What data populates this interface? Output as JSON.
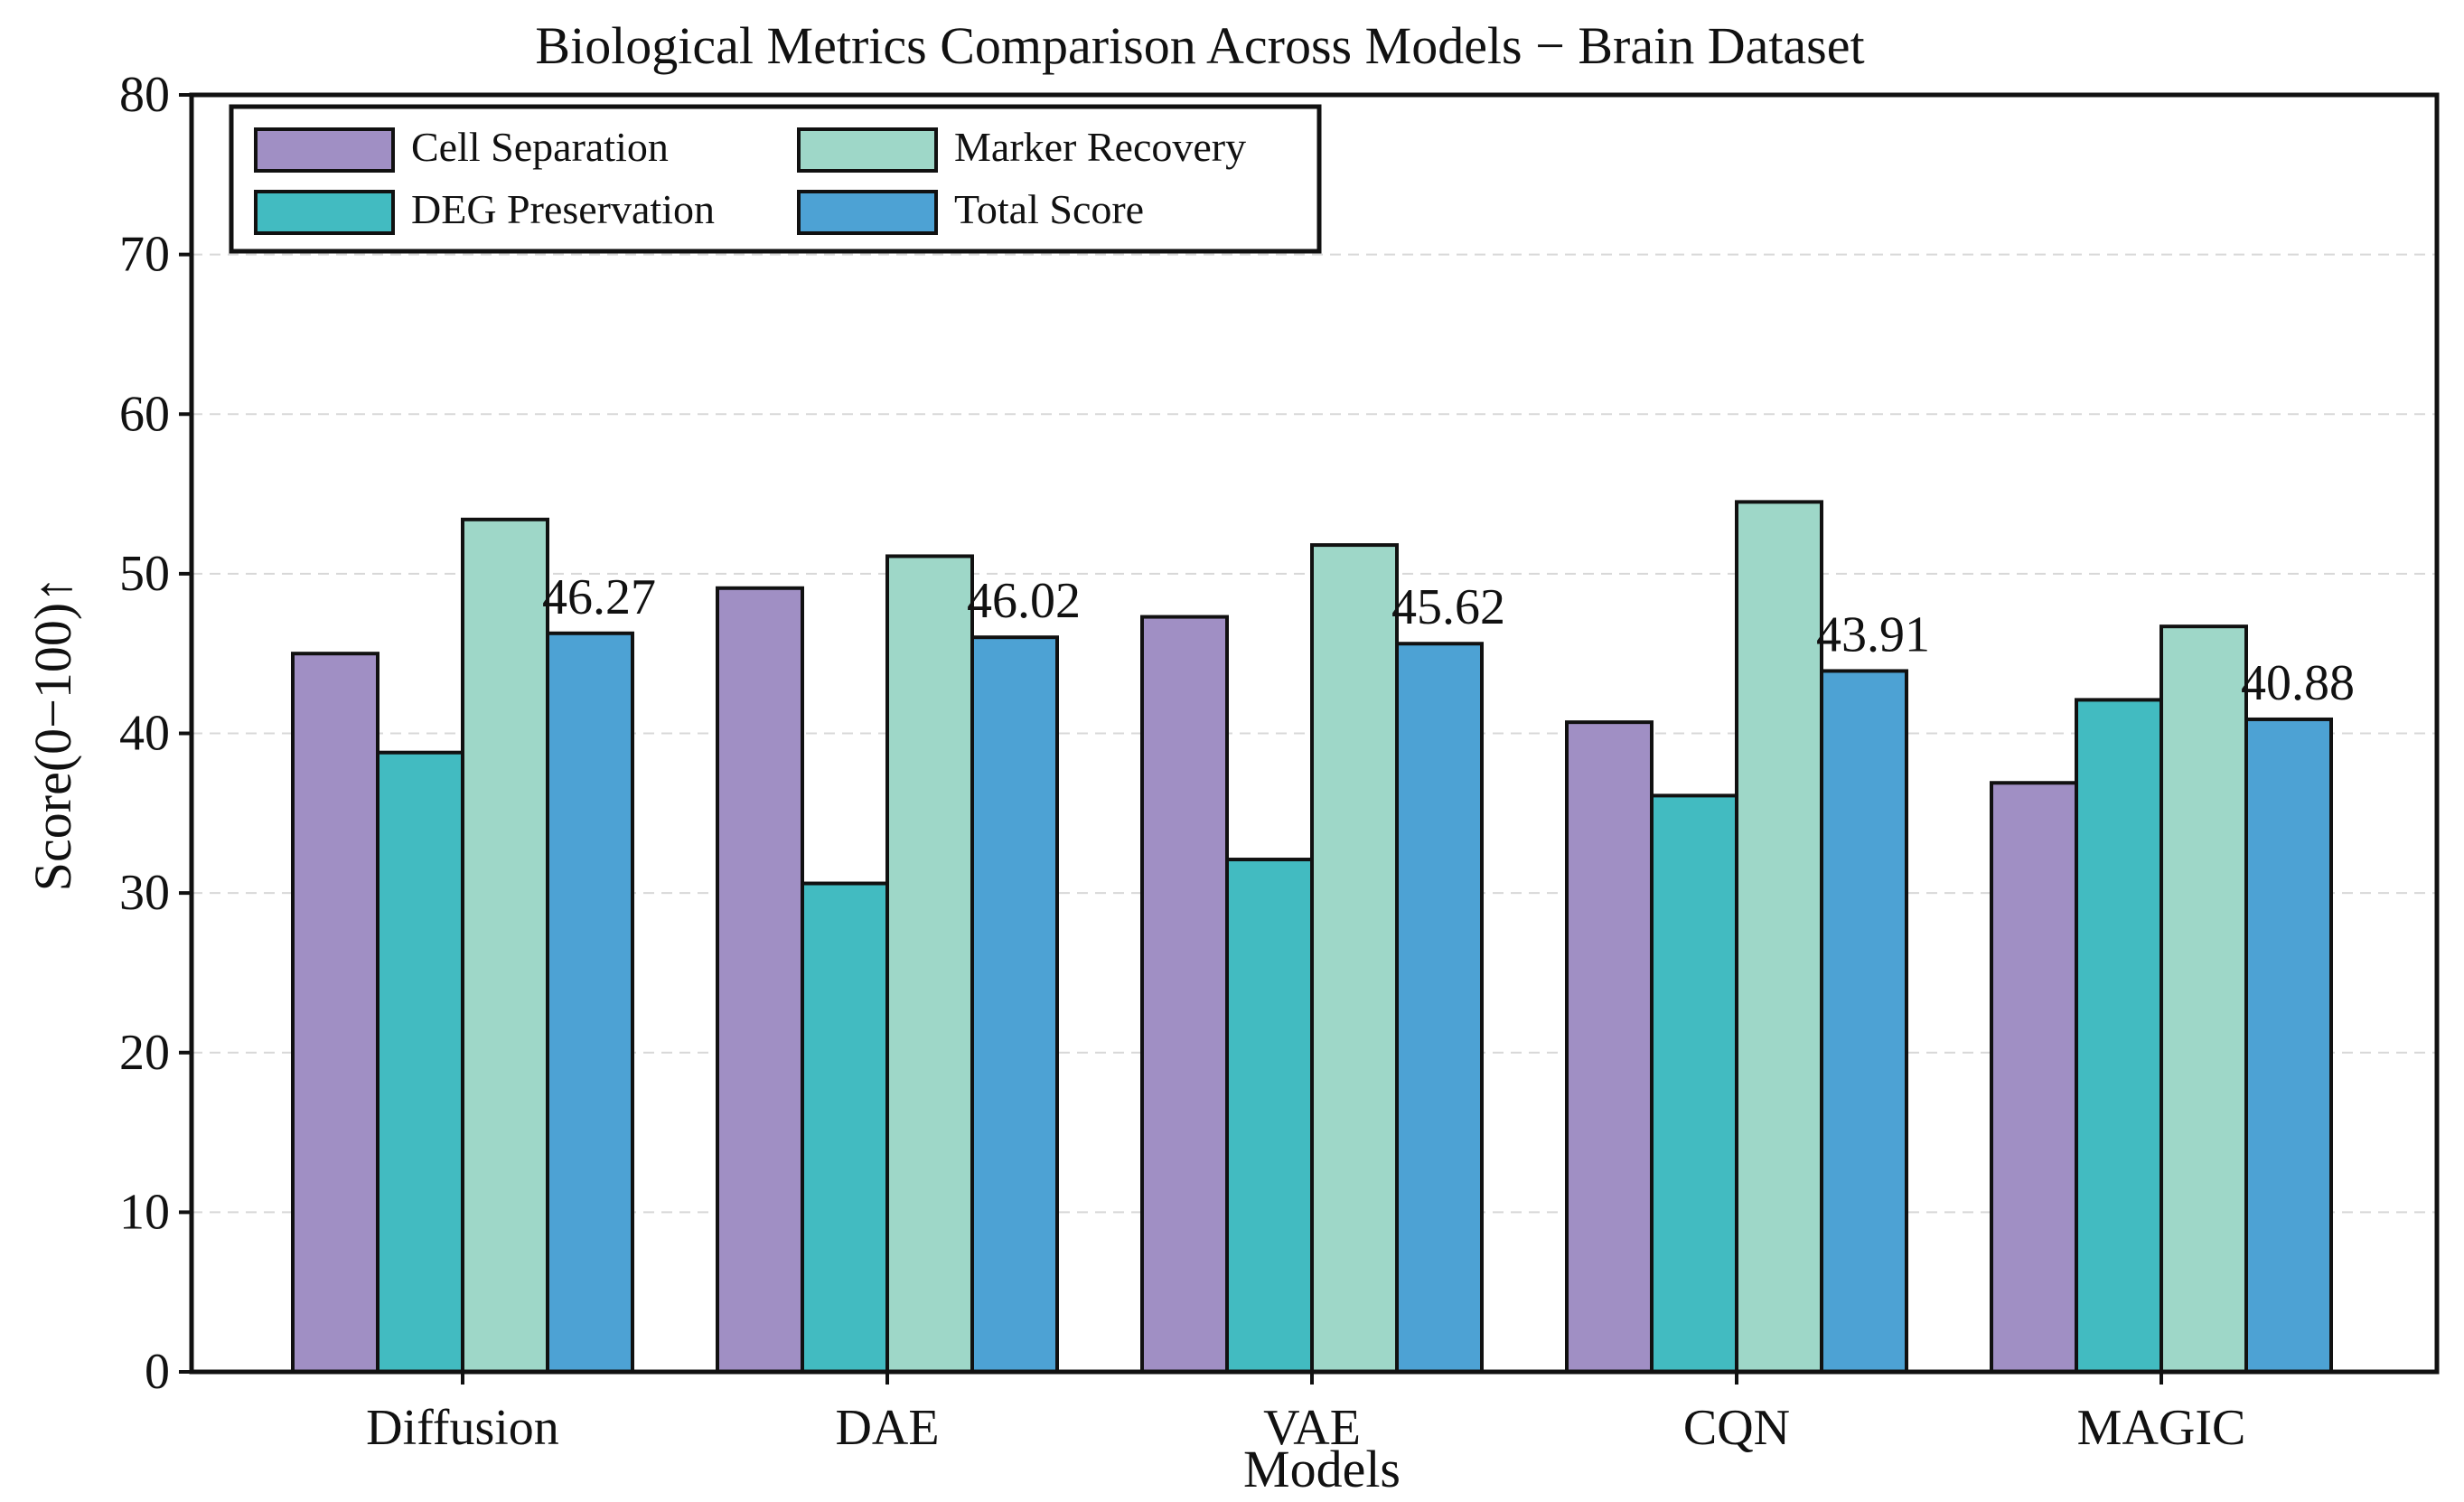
{
  "chart_data": {
    "type": "bar",
    "title": "Biological Metrics Comparison Across Models − Brain Dataset",
    "xlabel": "Models",
    "ylabel": "Score(0−100)↑",
    "ylim": [
      0,
      80
    ],
    "yticks": [
      0,
      10,
      20,
      30,
      40,
      50,
      60,
      70,
      80
    ],
    "grid": true,
    "legend_position": "top-left",
    "categories": [
      "Diffusion",
      "DAE",
      "VAE",
      "CQN",
      "MAGIC"
    ],
    "series": [
      {
        "name": "Cell Separation",
        "color": "#a08fc4",
        "values": [
          45.0,
          49.1,
          47.3,
          40.7,
          36.9
        ]
      },
      {
        "name": "DEG Preservation",
        "color": "#42bbc1",
        "values": [
          38.8,
          30.6,
          32.1,
          36.1,
          42.1
        ]
      },
      {
        "name": "Marker Recovery",
        "color": "#9ed7c8",
        "values": [
          53.4,
          51.1,
          51.8,
          54.5,
          46.7
        ]
      },
      {
        "name": "Total Score",
        "color": "#4da2d4",
        "values": [
          46.27,
          46.02,
          45.62,
          43.91,
          40.88
        ]
      }
    ],
    "value_labels": [
      "46.27",
      "46.02",
      "45.62",
      "43.91",
      "40.88"
    ]
  }
}
